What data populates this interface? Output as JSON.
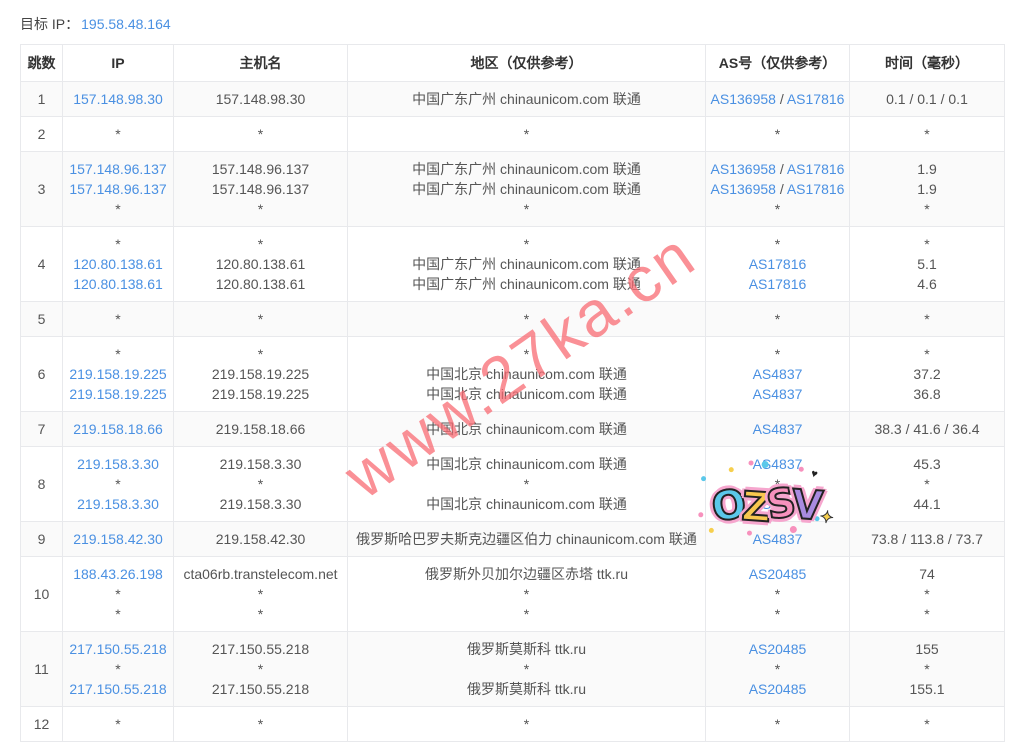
{
  "header": {
    "target_label": "目标 IP：",
    "target_ip": "195.58.48.164"
  },
  "colors": {
    "link": "#4a90e2",
    "watermark": "#f96a72",
    "stripe": "#fafafa",
    "border": "#e8e9ec",
    "text": "#555555",
    "header_text": "#333333"
  },
  "watermark": {
    "text": "www.27ka.cn"
  },
  "sticker": {
    "letters": [
      {
        "ch": "O",
        "color": "#5bc8ea"
      },
      {
        "ch": "Z",
        "color": "#f9c84f"
      },
      {
        "ch": "S",
        "color": "#f791bd"
      },
      {
        "ch": "V",
        "color": "#a98be0"
      }
    ],
    "sparkle": "✦",
    "heart": "♥"
  },
  "table": {
    "headers": [
      "跳数",
      "IP",
      "主机名",
      "地区（仅供参考）",
      "AS号（仅供参考）",
      "时间（毫秒）"
    ],
    "rows": [
      {
        "hop": "1",
        "ip": [
          "157.148.98.30"
        ],
        "host": [
          "157.148.98.30"
        ],
        "region": [
          "中国广东广州 chinaunicom.com 联通"
        ],
        "asn": [
          [
            "AS136958",
            "AS17816"
          ]
        ],
        "time": [
          "0.1 / 0.1 / 0.1"
        ]
      },
      {
        "hop": "2",
        "ip": [
          "*"
        ],
        "host": [
          "*"
        ],
        "region": [
          "*"
        ],
        "asn": [
          [
            "*"
          ]
        ],
        "time": [
          "*"
        ]
      },
      {
        "hop": "3",
        "ip": [
          "157.148.96.137",
          "157.148.96.137",
          "*"
        ],
        "host": [
          "157.148.96.137",
          "157.148.96.137",
          "*"
        ],
        "region": [
          "中国广东广州 chinaunicom.com 联通",
          "中国广东广州 chinaunicom.com 联通",
          "*"
        ],
        "asn": [
          [
            "AS136958",
            "AS17816"
          ],
          [
            "AS136958",
            "AS17816"
          ],
          [
            "*"
          ]
        ],
        "time": [
          "1.9",
          "1.9",
          "*"
        ]
      },
      {
        "hop": "4",
        "ip": [
          "*",
          "120.80.138.61",
          "120.80.138.61"
        ],
        "host": [
          "*",
          "120.80.138.61",
          "120.80.138.61"
        ],
        "region": [
          "*",
          "中国广东广州 chinaunicom.com 联通",
          "中国广东广州 chinaunicom.com 联通"
        ],
        "asn": [
          [
            "*"
          ],
          [
            "AS17816"
          ],
          [
            "AS17816"
          ]
        ],
        "time": [
          "*",
          "5.1",
          "4.6"
        ]
      },
      {
        "hop": "5",
        "ip": [
          "*"
        ],
        "host": [
          "*"
        ],
        "region": [
          "*"
        ],
        "asn": [
          [
            "*"
          ]
        ],
        "time": [
          "*"
        ]
      },
      {
        "hop": "6",
        "ip": [
          "*",
          "219.158.19.225",
          "219.158.19.225"
        ],
        "host": [
          "*",
          "219.158.19.225",
          "219.158.19.225"
        ],
        "region": [
          "*",
          "中国北京 chinaunicom.com 联通",
          "中国北京 chinaunicom.com 联通"
        ],
        "asn": [
          [
            "*"
          ],
          [
            "AS4837"
          ],
          [
            "AS4837"
          ]
        ],
        "time": [
          "*",
          "37.2",
          "36.8"
        ]
      },
      {
        "hop": "7",
        "ip": [
          "219.158.18.66"
        ],
        "host": [
          "219.158.18.66"
        ],
        "region": [
          "中国北京 chinaunicom.com 联通"
        ],
        "asn": [
          [
            "AS4837"
          ]
        ],
        "time": [
          "38.3 / 41.6 / 36.4"
        ]
      },
      {
        "hop": "8",
        "ip": [
          "219.158.3.30",
          "*",
          "219.158.3.30"
        ],
        "host": [
          "219.158.3.30",
          "*",
          "219.158.3.30"
        ],
        "region": [
          "中国北京 chinaunicom.com 联通",
          "*",
          "中国北京 chinaunicom.com 联通"
        ],
        "asn": [
          [
            "AS4837"
          ],
          [
            "*"
          ],
          [
            "AS4837"
          ]
        ],
        "time": [
          "45.3",
          "*",
          "44.1"
        ]
      },
      {
        "hop": "9",
        "ip": [
          "219.158.42.30"
        ],
        "host": [
          "219.158.42.30"
        ],
        "region": [
          "俄罗斯哈巴罗夫斯克边疆区伯力 chinaunicom.com 联通"
        ],
        "asn": [
          [
            "AS4837"
          ]
        ],
        "time": [
          "73.8 / 113.8 / 73.7"
        ]
      },
      {
        "hop": "10",
        "ip": [
          "188.43.26.198",
          "*",
          "*"
        ],
        "host": [
          "cta06rb.transtelecom.net",
          "*",
          "*"
        ],
        "region": [
          "俄罗斯外贝加尔边疆区赤塔 ttk.ru",
          "*",
          "*"
        ],
        "asn": [
          [
            "AS20485"
          ],
          [
            "*"
          ],
          [
            "*"
          ]
        ],
        "time": [
          "74",
          "*",
          "*"
        ]
      },
      {
        "hop": "11",
        "ip": [
          "217.150.55.218",
          "*",
          "217.150.55.218"
        ],
        "host": [
          "217.150.55.218",
          "*",
          "217.150.55.218"
        ],
        "region": [
          "俄罗斯莫斯科 ttk.ru",
          "*",
          "俄罗斯莫斯科 ttk.ru"
        ],
        "asn": [
          [
            "AS20485"
          ],
          [
            "*"
          ],
          [
            "AS20485"
          ]
        ],
        "time": [
          "155",
          "*",
          "155.1"
        ]
      },
      {
        "hop": "12",
        "ip": [
          "*"
        ],
        "host": [
          "*"
        ],
        "region": [
          "*"
        ],
        "asn": [
          [
            "*"
          ]
        ],
        "time": [
          "*"
        ]
      }
    ]
  }
}
